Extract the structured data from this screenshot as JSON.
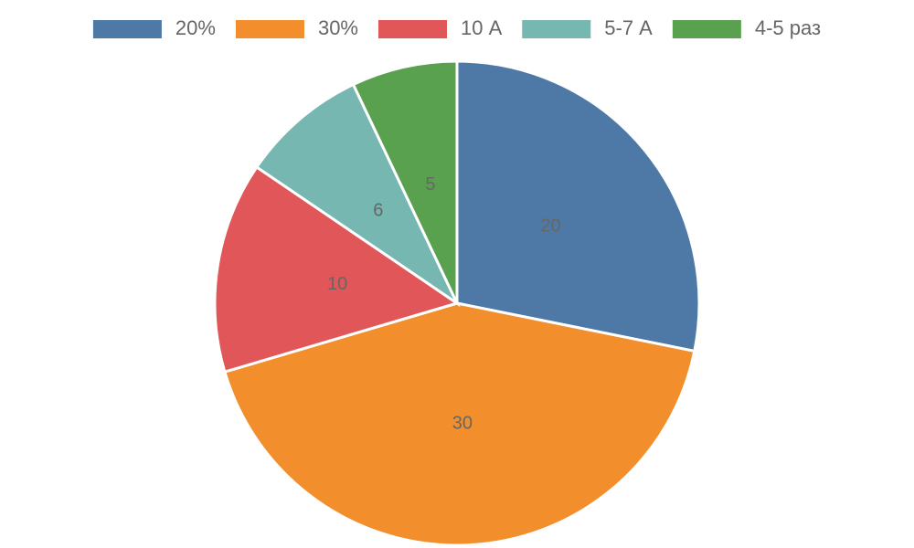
{
  "chart_data": {
    "type": "pie",
    "categories": [
      "20%",
      "30%",
      "10 А",
      "5-7 А",
      "4-5 раз"
    ],
    "values": [
      20,
      30,
      10,
      6,
      5
    ],
    "colors": [
      "#4e79a7",
      "#f28e2c",
      "#e15759",
      "#76b7b2",
      "#59a14f"
    ],
    "legend": "top"
  }
}
